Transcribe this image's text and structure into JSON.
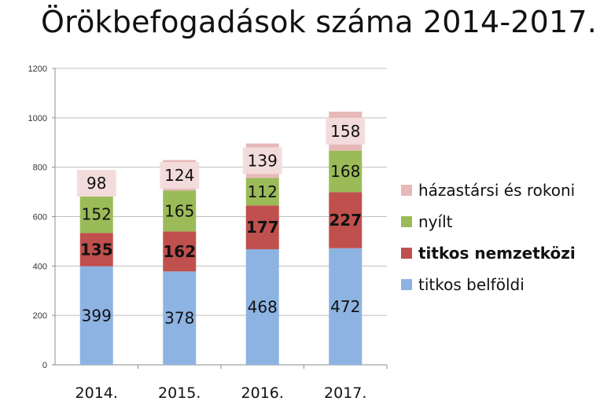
{
  "chart_data": {
    "type": "bar",
    "stacked": true,
    "title": "Örökbefogadások száma 2014-2017.",
    "categories": [
      "2014.",
      "2015.",
      "2016.",
      "2017."
    ],
    "series": [
      {
        "name": "titkos belföldi",
        "values": [
          399,
          378,
          468,
          472
        ],
        "color": "#8db3e2",
        "bold": false
      },
      {
        "name": "titkos nemzetközi",
        "values": [
          135,
          162,
          177,
          227
        ],
        "color": "#c0504d",
        "bold": true
      },
      {
        "name": "nyílt",
        "values": [
          152,
          165,
          112,
          168
        ],
        "color": "#9bbb59",
        "bold": false
      },
      {
        "name": "házastársi és rokoni",
        "values": [
          98,
          124,
          139,
          158
        ],
        "color": "#e6b9b8",
        "bold": false
      }
    ],
    "ylim": [
      0,
      1200
    ],
    "yticks": [
      0,
      200,
      400,
      600,
      800,
      1000,
      1200
    ],
    "grid": true,
    "legend_position": "right"
  }
}
